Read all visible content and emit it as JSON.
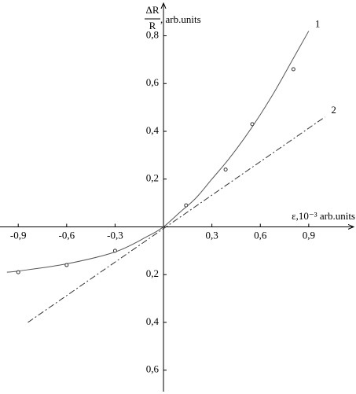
{
  "chart_data": {
    "type": "line",
    "y_label_numerator": "ΔR",
    "y_label_denominator": "R",
    "y_label_unit": ", arb.units",
    "x_label": "ε,10⁻³ arb.units",
    "xlim": [
      -1.013,
      1.188
    ],
    "ylim": [
      -0.69,
      0.94
    ],
    "xticks": [
      {
        "value": -0.9,
        "label": "-0,9"
      },
      {
        "value": -0.6,
        "label": "-0,6"
      },
      {
        "value": -0.3,
        "label": "-0,3"
      },
      {
        "value": 0.3,
        "label": "0,3"
      },
      {
        "value": 0.6,
        "label": "0,6"
      },
      {
        "value": 0.9,
        "label": "0,9"
      }
    ],
    "yticks": [
      {
        "value": -0.6,
        "label": "0,6"
      },
      {
        "value": -0.4,
        "label": "0,4"
      },
      {
        "value": -0.2,
        "label": "0,2"
      },
      {
        "value": 0.2,
        "label": "0,2"
      },
      {
        "value": 0.4,
        "label": "0,4"
      },
      {
        "value": 0.6,
        "label": "0,6"
      },
      {
        "value": 0.8,
        "label": "0,8"
      }
    ],
    "series": [
      {
        "name": "1",
        "color": "#555555",
        "style": "solid",
        "x": [
          -0.97,
          -0.9,
          -0.6,
          -0.3,
          -0.1,
          0,
          0.1,
          0.2,
          0.3,
          0.4,
          0.5,
          0.6,
          0.7,
          0.8,
          0.9
        ],
        "values": [
          -0.19,
          -0.185,
          -0.155,
          -0.105,
          -0.04,
          0,
          0.06,
          0.12,
          0.2,
          0.28,
          0.37,
          0.47,
          0.58,
          0.7,
          0.82
        ]
      },
      {
        "name": "2",
        "color": "#333333",
        "style": "dashdot",
        "x": [
          -0.84,
          1.0
        ],
        "values": [
          -0.4,
          0.46
        ]
      }
    ],
    "points": {
      "color": "#333333",
      "x": [
        -0.9,
        -0.6,
        -0.3,
        0.14,
        0.385,
        0.55,
        0.805
      ],
      "values": [
        -0.19,
        -0.16,
        -0.1,
        0.09,
        0.24,
        0.43,
        0.66
      ]
    }
  }
}
